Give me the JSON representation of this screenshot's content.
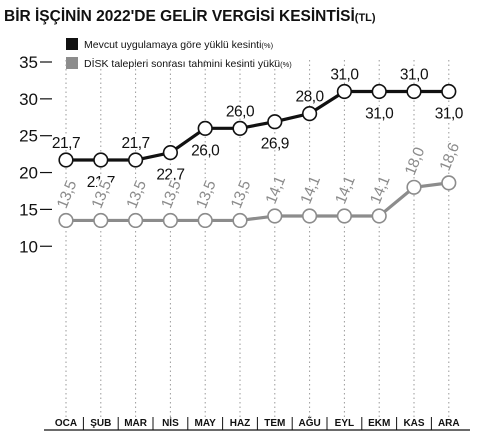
{
  "chart_data": {
    "type": "line",
    "title": "BİR İŞÇİNİN 2022'DE GELİR VERGİSİ KESİNTİSİ",
    "title_unit": "(TL)",
    "categories": [
      "OCA",
      "ŞUB",
      "MAR",
      "NİS",
      "MAY",
      "HAZ",
      "TEM",
      "AĞU",
      "EYL",
      "EKM",
      "KAS",
      "ARA"
    ],
    "ylim": [
      10,
      35
    ],
    "yticks": [
      10,
      15,
      20,
      25,
      30,
      35
    ],
    "grid": "dotted vertical lines at each month",
    "legend_position": "top-left",
    "series": [
      {
        "name": "Mevcut uygulamaya göre yüklü kesinti",
        "unit": "(%)",
        "color": "#111111",
        "values": [
          21.7,
          21.7,
          21.7,
          22.7,
          26.0,
          26.0,
          26.9,
          28.0,
          31.0,
          31.0,
          31.0,
          31.0
        ],
        "labels": [
          "21,7",
          "21,7",
          "21,7",
          "22,7",
          "26,0",
          "26,0",
          "26,9",
          "28,0",
          "31,0",
          "31,0",
          "31,0",
          "31,0"
        ]
      },
      {
        "name": "DİSK talepleri sonrası tahmini kesinti yükü",
        "unit": "(%)",
        "color": "#8c8c8c",
        "values": [
          13.5,
          13.5,
          13.5,
          13.5,
          13.5,
          13.5,
          14.1,
          14.1,
          14.1,
          14.1,
          18.0,
          18.6
        ],
        "labels": [
          "13,5",
          "13,5",
          "13,5",
          "13,5",
          "13,5",
          "13,5",
          "14,1",
          "14,1",
          "14,1",
          "14,1",
          "18,0",
          "18,6"
        ]
      }
    ]
  }
}
